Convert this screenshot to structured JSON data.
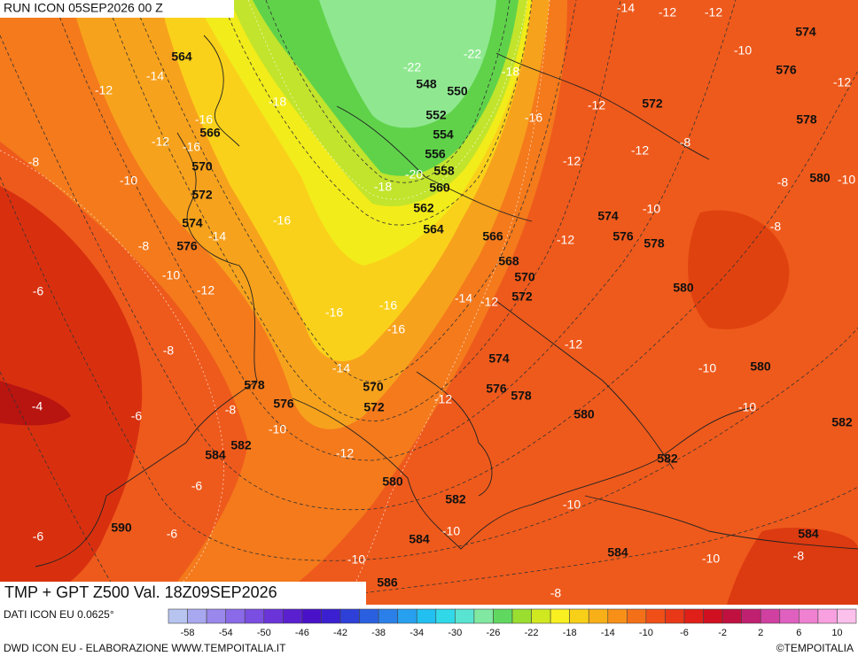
{
  "header": {
    "run": "RUN ICON 05SEP2026 00 Z",
    "title": "TMP + GPT Z500 Val. 18Z09SEP2026"
  },
  "footer": {
    "source": "DATI ICON EU 0.0625°",
    "credits": "DWD ICON EU - ELABORAZIONE WWW.TEMPOITALIA.IT",
    "copyright": "©TEMPOITALIA"
  },
  "map": {
    "geopotential_labels": [
      564,
      566,
      570,
      572,
      574,
      576,
      548,
      550,
      552,
      554,
      556,
      558,
      560,
      562,
      564,
      566,
      568,
      570,
      572,
      574,
      576,
      578,
      570,
      572,
      578,
      576,
      582,
      584,
      580,
      582,
      584,
      586,
      590,
      580,
      582,
      574,
      576,
      578,
      580,
      580,
      580,
      582,
      584,
      584,
      572,
      574,
      576,
      578
    ],
    "temperature_labels": [
      -14,
      -12,
      -18,
      -16,
      -12,
      -16,
      -8,
      -10,
      -14,
      -8,
      -16,
      -10,
      -12,
      -6,
      -16,
      -16,
      -16,
      -14,
      -12,
      -8,
      -14,
      -8,
      -6,
      -4,
      -10,
      -12,
      -12,
      -6,
      -6,
      -6,
      -10,
      -10,
      -8,
      -10,
      -10,
      -8,
      -10,
      -10,
      -12,
      -12,
      -10,
      -8,
      -10,
      -8,
      -8,
      -12,
      -12,
      -12,
      -16,
      -18,
      -14,
      -12,
      -12,
      -10,
      -12,
      -22,
      -22,
      -18,
      -20
    ],
    "colorbar_labels": [
      -58,
      -54,
      -50,
      -46,
      -42,
      -38,
      -34,
      -30,
      -26,
      -22,
      -18,
      -14,
      -10,
      -6,
      -2,
      2,
      6,
      10
    ]
  }
}
